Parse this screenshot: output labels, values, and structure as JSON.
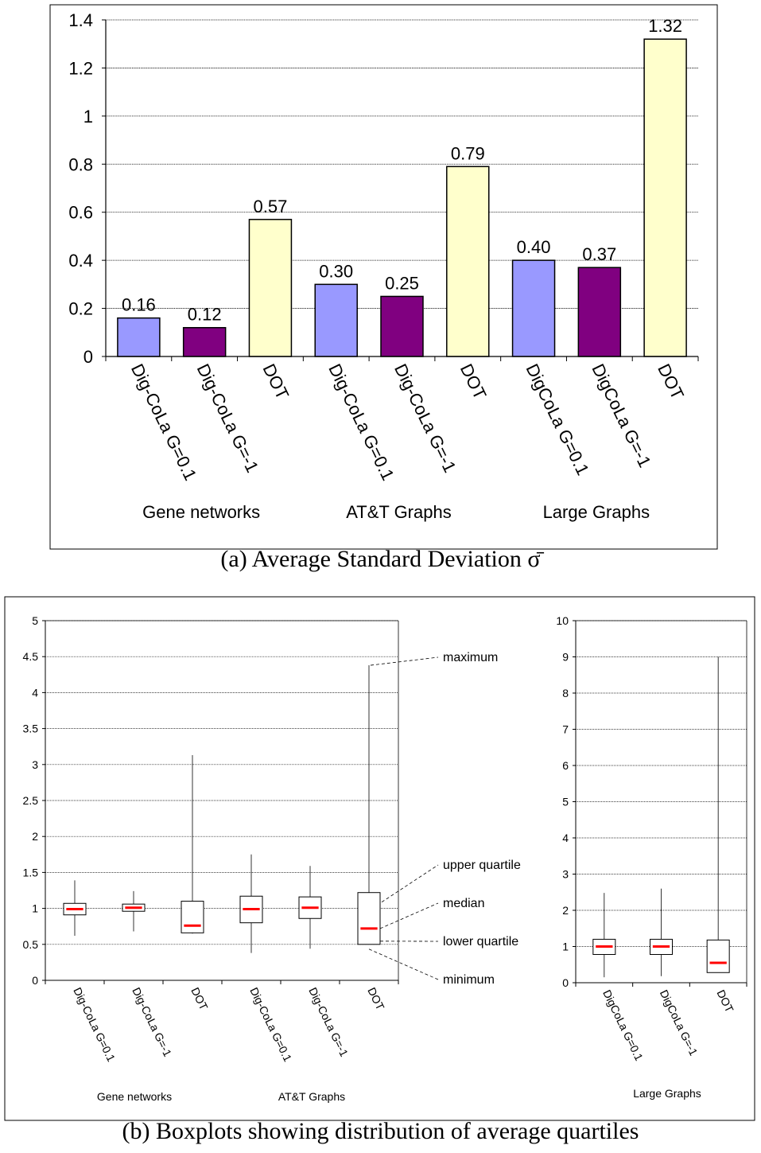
{
  "captions": {
    "a": "(a)  Average Standard Deviation σ̄",
    "b": "(b)  Boxplots showing distribution of average quartiles"
  },
  "colors": {
    "digcola_g01": "#9999ff",
    "digcola_gm1": "#800080",
    "dot": "#ffffcc",
    "median": "#ff0000",
    "grid": "#000000"
  },
  "chart_data": [
    {
      "type": "bar",
      "title": "",
      "categories": [
        "Dig-CoLa G=0.1",
        "Dig-CoLa G=-1",
        "DOT",
        "Dig-CoLa G=0.1",
        "Dig-CoLa G=-1",
        "DOT",
        "DigCoLa G=0.1",
        "DigCoLa G=-1",
        "DOT"
      ],
      "values": [
        0.16,
        0.12,
        0.57,
        0.3,
        0.25,
        0.79,
        0.4,
        0.37,
        1.32
      ],
      "value_labels": [
        "0.16",
        "0.12",
        "0.57",
        "0.30",
        "0.25",
        "0.79",
        "0.40",
        "0.37",
        "1.32"
      ],
      "color_keys": [
        "digcola_g01",
        "digcola_gm1",
        "dot",
        "digcola_g01",
        "digcola_gm1",
        "dot",
        "digcola_g01",
        "digcola_gm1",
        "dot"
      ],
      "groups": [
        "Gene networks",
        "AT&T Graphs",
        "Large Graphs"
      ],
      "ylim": [
        0,
        1.4
      ],
      "yticks": [
        "0",
        "0.2",
        "0.4",
        "0.6",
        "0.8",
        "1",
        "1.2",
        "1.4"
      ],
      "grid": true
    },
    {
      "type": "boxplot",
      "categories": [
        "Dig-CoLa G=0.1",
        "Dig-CoLa G=-1",
        "DOT",
        "Dig-CoLa G=0.1",
        "Dig-CoLa G=-1",
        "DOT"
      ],
      "groups": [
        "Gene networks",
        "AT&T Graphs"
      ],
      "ylim": [
        0,
        5
      ],
      "yticks": [
        "0",
        "0.5",
        "1",
        "1.5",
        "2",
        "2.5",
        "3",
        "3.5",
        "4",
        "4.5",
        "5"
      ],
      "boxes": [
        {
          "min": 0.62,
          "q1": 0.91,
          "median": 0.99,
          "q3": 1.07,
          "max": 1.39
        },
        {
          "min": 0.68,
          "q1": 0.96,
          "median": 1.01,
          "q3": 1.06,
          "max": 1.24
        },
        {
          "min": 0.65,
          "q1": 0.66,
          "median": 0.76,
          "q3": 1.1,
          "max": 3.13
        },
        {
          "min": 0.38,
          "q1": 0.8,
          "median": 0.99,
          "q3": 1.17,
          "max": 1.75
        },
        {
          "min": 0.44,
          "q1": 0.86,
          "median": 1.01,
          "q3": 1.16,
          "max": 1.59
        },
        {
          "min": 0.5,
          "q1": 0.5,
          "median": 0.72,
          "q3": 1.22,
          "max": 4.38
        }
      ],
      "annotations": [
        "maximum",
        "upper quartile",
        "median",
        "lower quartile",
        "minimum"
      ],
      "grid": true
    },
    {
      "type": "boxplot",
      "categories": [
        "DigCoLa G=0.1",
        "DigCoLa G=-1",
        "DOT"
      ],
      "groups": [
        "Large Graphs"
      ],
      "ylim": [
        0,
        10
      ],
      "yticks": [
        "0",
        "1",
        "2",
        "3",
        "4",
        "5",
        "6",
        "7",
        "8",
        "9",
        "10"
      ],
      "boxes": [
        {
          "min": 0.15,
          "q1": 0.78,
          "median": 1.0,
          "q3": 1.2,
          "max": 2.48
        },
        {
          "min": 0.18,
          "q1": 0.78,
          "median": 1.0,
          "q3": 1.2,
          "max": 2.6
        },
        {
          "min": 0.28,
          "q1": 0.28,
          "median": 0.55,
          "q3": 1.18,
          "max": 9.0
        }
      ],
      "grid": true
    }
  ]
}
